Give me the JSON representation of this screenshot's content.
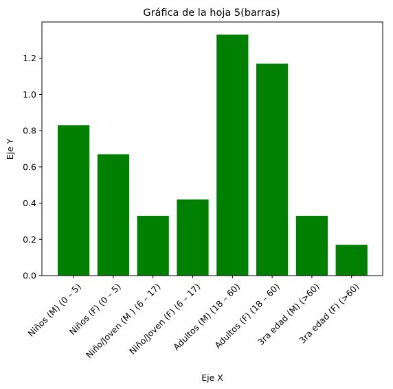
{
  "chart_data": {
    "type": "bar",
    "title": "Gráfica de la hoja 5(barras)",
    "xlabel": "Eje X",
    "ylabel": "Eje Y",
    "categories": [
      "Niños (M) (0 – 5)",
      "Niños (F) (0 – 5)",
      "Niño/Joven (M ) (6 – 17)",
      "Niño/Joven (F) (6 – 17)",
      "Adultos (M) (18 – 60)",
      "Adultos (F) (18 – 60)",
      "3ra edad (M) (>60)",
      "3ra edad (F) (>60)"
    ],
    "values": [
      0.83,
      0.67,
      0.33,
      0.42,
      1.33,
      1.17,
      0.33,
      0.17
    ],
    "ylim": [
      0,
      1.4
    ],
    "yticks": [
      "0.0",
      "0.2",
      "0.4",
      "0.6",
      "0.8",
      "1.0",
      "1.2"
    ],
    "grid": false,
    "bar_color": "#008000"
  }
}
